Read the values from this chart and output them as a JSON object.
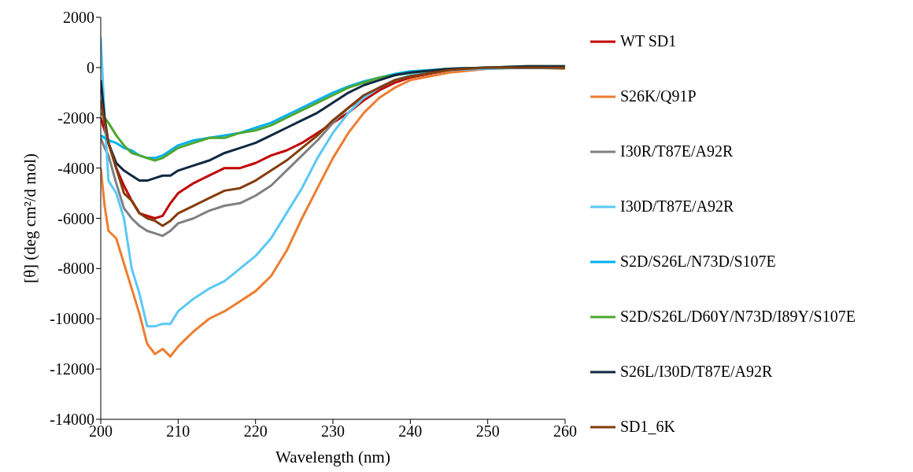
{
  "chart_data": {
    "type": "line",
    "xlabel": "Wavelength (nm)",
    "ylabel": "[θ] (deg cm²/d mol)",
    "x": [
      200,
      200.5,
      201,
      202,
      203,
      204,
      205,
      206,
      207,
      208,
      209,
      210,
      212,
      214,
      216,
      218,
      220,
      222,
      224,
      226,
      228,
      230,
      232,
      234,
      236,
      238,
      240,
      245,
      250,
      255,
      260
    ],
    "xlim": [
      200,
      260
    ],
    "xticks": [
      200,
      210,
      220,
      230,
      240,
      250,
      260
    ],
    "ylim": [
      -14000,
      2000
    ],
    "yticks": [
      -14000,
      -12000,
      -10000,
      -8000,
      -6000,
      -4000,
      -2000,
      0,
      2000
    ],
    "grid": false,
    "legend": "right",
    "marker": "none",
    "line_style": "solid",
    "series": [
      {
        "name": "WT SD1",
        "color": "#c00000",
        "values": [
          -2000,
          -2500,
          -3000,
          -4000,
          -4700,
          -5300,
          -5800,
          -5900,
          -6000,
          -5900,
          -5400,
          -5000,
          -4600,
          -4300,
          -4000,
          -4000,
          -3800,
          -3500,
          -3300,
          -3000,
          -2600,
          -2200,
          -1800,
          -1300,
          -900,
          -600,
          -400,
          -100,
          0,
          0,
          0
        ]
      },
      {
        "name": "S26K/Q91P",
        "color": "#ed7d31",
        "values": [
          -4000,
          -5500,
          -6500,
          -6800,
          -7800,
          -8800,
          -9800,
          -11000,
          -11400,
          -11200,
          -11500,
          -11100,
          -10500,
          -10000,
          -9700,
          -9300,
          -8900,
          -8300,
          -7300,
          -6000,
          -4800,
          -3600,
          -2600,
          -1800,
          -1200,
          -800,
          -500,
          -200,
          -50,
          0,
          -50
        ]
      },
      {
        "name": "I30R/T87E/A92R",
        "color": "#808080",
        "values": [
          -2800,
          -3200,
          -3500,
          -4600,
          -5600,
          -6000,
          -6300,
          -6500,
          -6600,
          -6700,
          -6500,
          -6200,
          -6000,
          -5700,
          -5500,
          -5400,
          -5100,
          -4700,
          -4100,
          -3500,
          -2900,
          -2200,
          -1600,
          -1200,
          -800,
          -500,
          -350,
          -100,
          0,
          0,
          0
        ]
      },
      {
        "name": "I30D/T87E/A92R",
        "color": "#5bc8f5",
        "values": [
          1200,
          -2000,
          -4500,
          -5000,
          -6000,
          -8000,
          -9000,
          -10300,
          -10300,
          -10200,
          -10200,
          -9700,
          -9200,
          -8800,
          -8500,
          -8000,
          -7500,
          -6800,
          -5800,
          -4800,
          -3600,
          -2600,
          -1800,
          -1200,
          -800,
          -500,
          -300,
          -100,
          -50,
          0,
          0
        ]
      },
      {
        "name": "S2D/S26L/N73D/S107E",
        "color": "#00b0f0",
        "values": [
          -2700,
          -2800,
          -2900,
          -3000,
          -3200,
          -3300,
          -3500,
          -3600,
          -3600,
          -3500,
          -3300,
          -3100,
          -2900,
          -2800,
          -2700,
          -2600,
          -2400,
          -2200,
          -1900,
          -1600,
          -1300,
          -1000,
          -750,
          -550,
          -400,
          -250,
          -150,
          -50,
          0,
          0,
          0
        ]
      },
      {
        "name": "S2D/S26L/D60Y/N73D/I89Y/S107E",
        "color": "#4ea72e",
        "values": [
          -1800,
          -2000,
          -2200,
          -2700,
          -3100,
          -3400,
          -3500,
          -3600,
          -3700,
          -3600,
          -3400,
          -3200,
          -3000,
          -2800,
          -2800,
          -2600,
          -2500,
          -2300,
          -2000,
          -1700,
          -1400,
          -1100,
          -800,
          -600,
          -400,
          -300,
          -200,
          -50,
          0,
          50,
          50
        ]
      },
      {
        "name": "S26L/I30D/T87E/A92R",
        "color": "#0e2841",
        "values": [
          -500,
          -2000,
          -3000,
          -3800,
          -4100,
          -4300,
          -4500,
          -4500,
          -4400,
          -4300,
          -4300,
          -4100,
          -3900,
          -3700,
          -3400,
          -3200,
          -3000,
          -2700,
          -2400,
          -2100,
          -1800,
          -1400,
          -1000,
          -700,
          -500,
          -300,
          -200,
          -50,
          0,
          50,
          50
        ]
      },
      {
        "name": "SD1_6K",
        "color": "#843c0c",
        "values": [
          -1300,
          -2200,
          -3000,
          -4000,
          -5000,
          -5300,
          -5800,
          -6000,
          -6100,
          -6300,
          -6100,
          -5800,
          -5500,
          -5200,
          -4900,
          -4800,
          -4500,
          -4100,
          -3700,
          -3200,
          -2700,
          -2100,
          -1600,
          -1100,
          -800,
          -500,
          -350,
          -100,
          0,
          0,
          0
        ]
      }
    ]
  }
}
